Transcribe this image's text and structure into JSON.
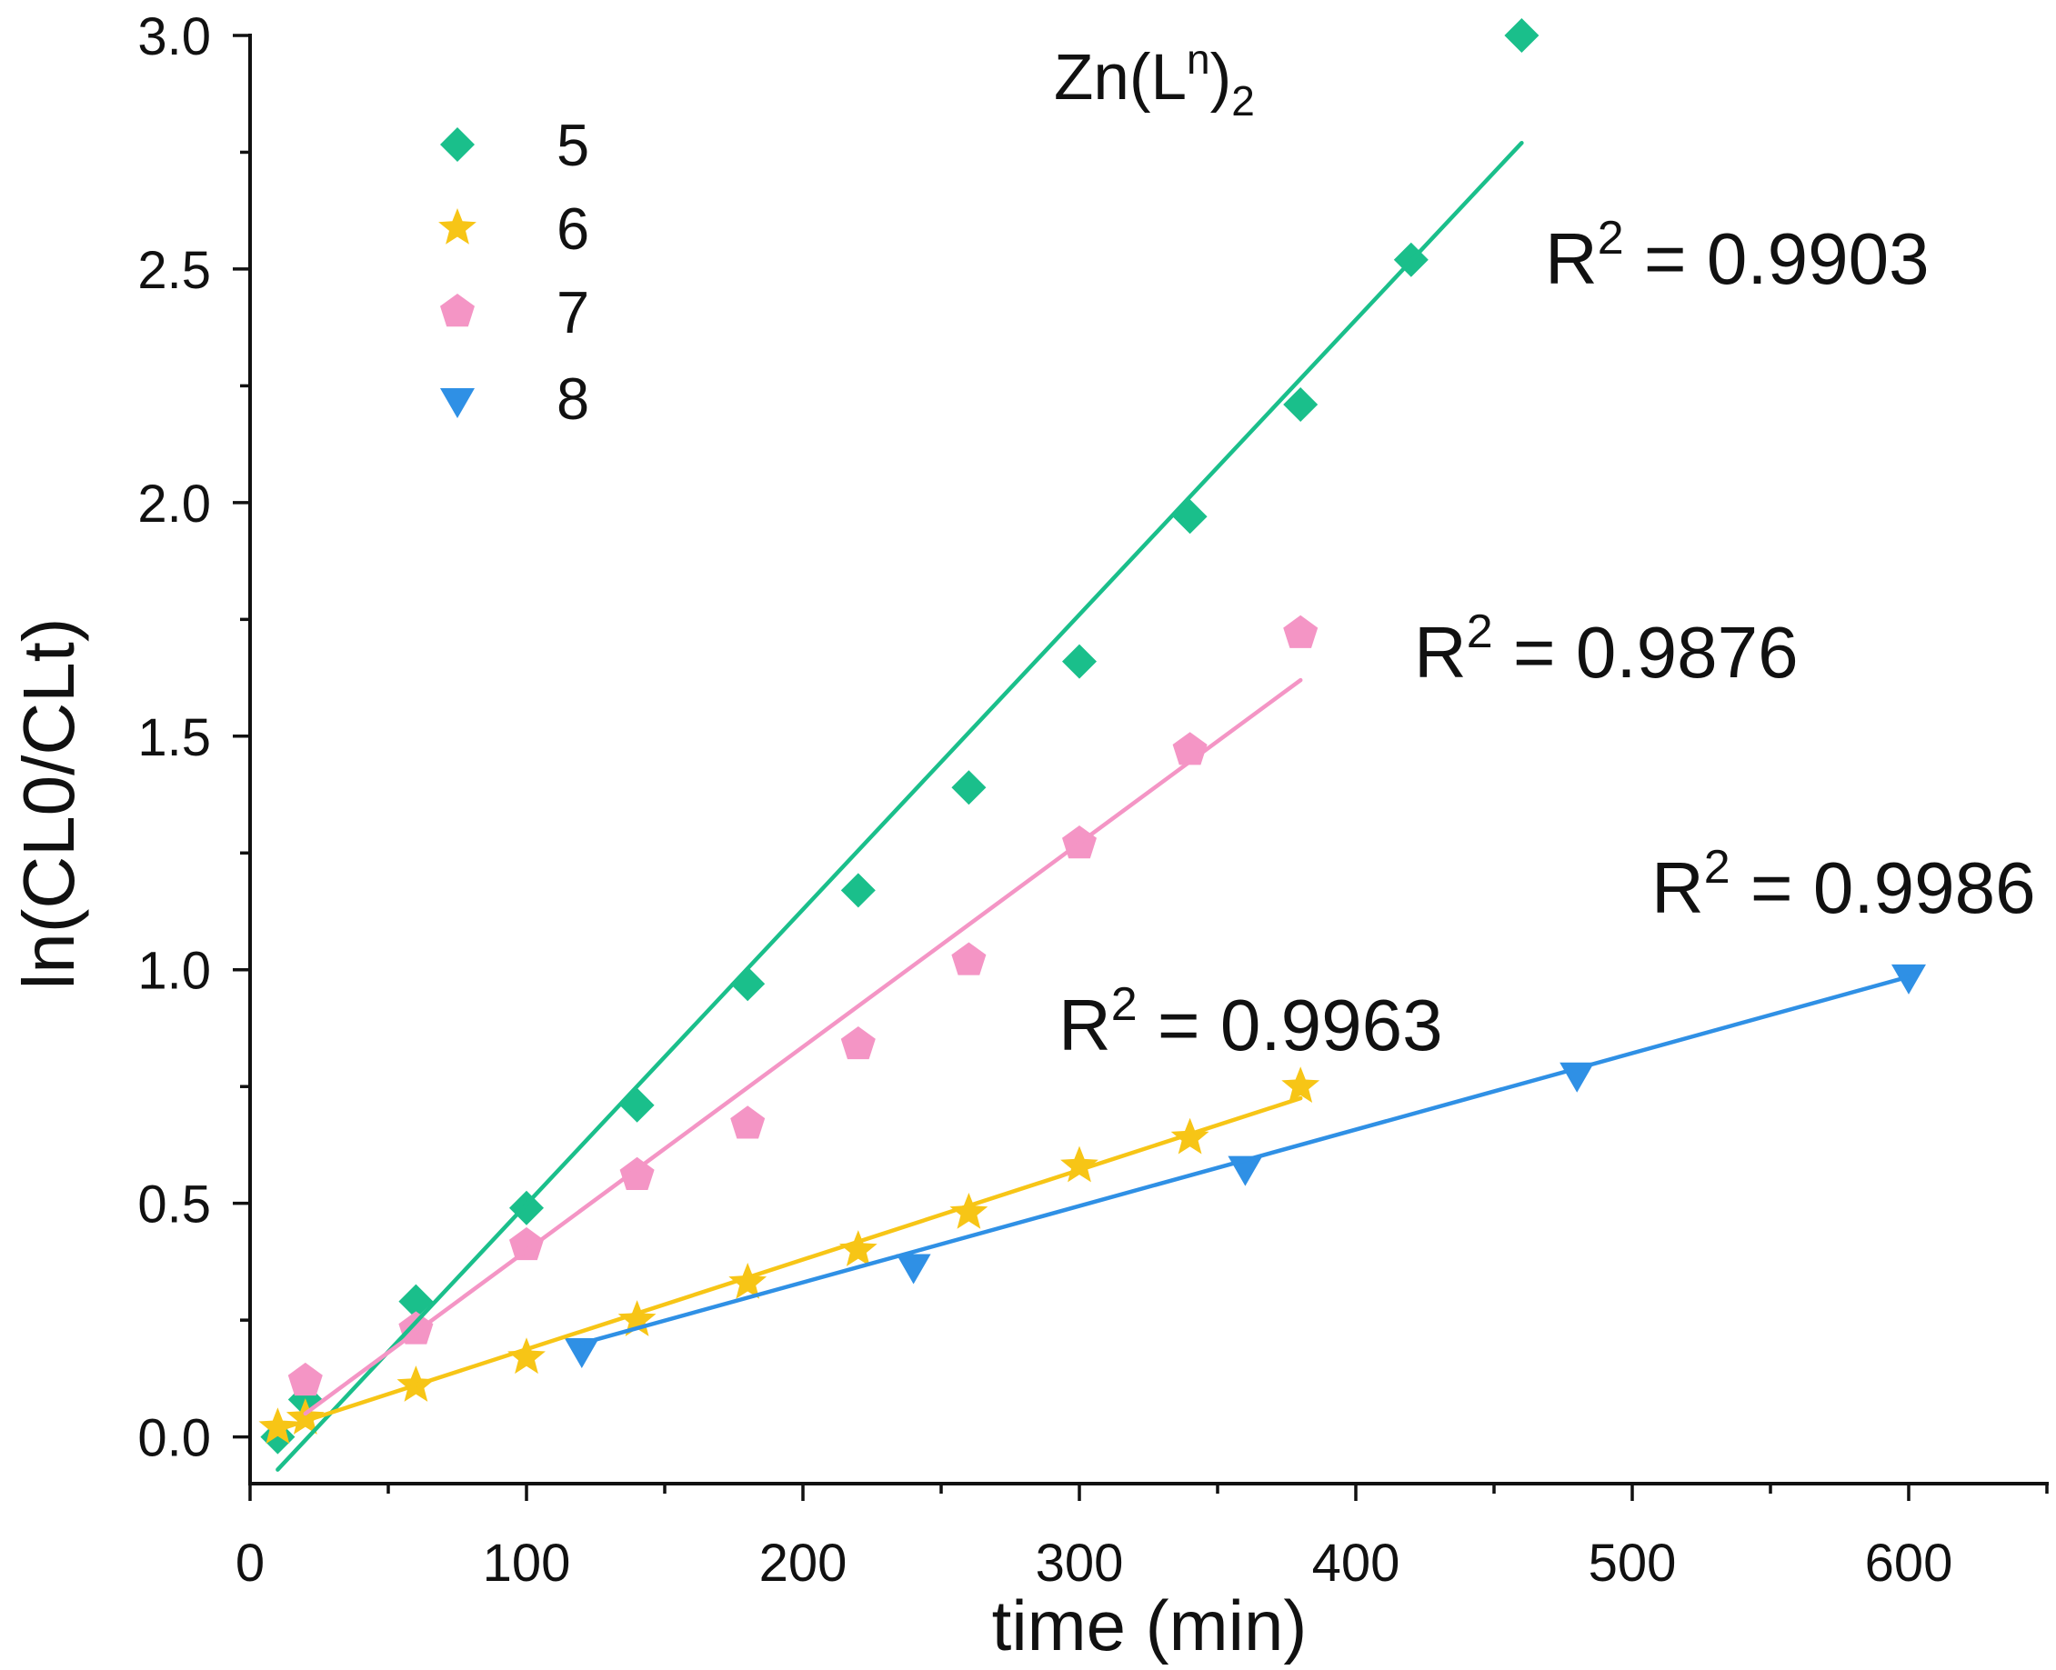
{
  "chart_data": {
    "type": "scatter",
    "title": "",
    "xlabel": "time (min)",
    "ylabel": "ln(CL0/CLt)",
    "xlim": [
      0,
      650
    ],
    "ylim": [
      -0.1,
      3.0
    ],
    "xticks": [
      0,
      100,
      200,
      300,
      400,
      500,
      600
    ],
    "xtick_labels": [
      "0",
      "100",
      "200",
      "300",
      "400",
      "500",
      "600"
    ],
    "yticks": [
      0,
      0.5,
      1.0,
      1.5,
      2.0,
      2.5,
      3.0
    ],
    "ytick_labels": [
      "0.0",
      "0.5",
      "1.0",
      "1.5",
      "2.0",
      "2.5",
      "3.0"
    ],
    "grid": false,
    "legend": {
      "position": "top-left",
      "title": {
        "base": "Zn(L",
        "sup": "n",
        "close": ")",
        "sub": "2"
      }
    },
    "series": [
      {
        "name": "5",
        "color": "#1ABF8B",
        "marker": "diamond",
        "x": [
          10,
          20,
          60,
          100,
          140,
          180,
          220,
          260,
          300,
          340,
          380,
          420,
          460
        ],
        "y": [
          0.0,
          0.08,
          0.29,
          0.49,
          0.71,
          0.97,
          1.17,
          1.39,
          1.66,
          1.97,
          2.21,
          2.52,
          3.0
        ],
        "fit": {
          "x": [
            10,
            460
          ],
          "y": [
            -0.07,
            2.77
          ]
        },
        "r2": {
          "symbol": "R",
          "sup": "2",
          "text": " = 0.9903"
        }
      },
      {
        "name": "6",
        "color": "#F7C516",
        "marker": "star",
        "x": [
          10,
          20,
          60,
          100,
          140,
          180,
          220,
          260,
          300,
          340,
          380
        ],
        "y": [
          0.02,
          0.04,
          0.11,
          0.17,
          0.25,
          0.33,
          0.4,
          0.48,
          0.58,
          0.64,
          0.75
        ],
        "fit": {
          "x": [
            10,
            380
          ],
          "y": [
            0.015,
            0.725
          ]
        },
        "r2": {
          "symbol": "R",
          "sup": "2",
          "text": " = 0.9963"
        }
      },
      {
        "name": "7",
        "color": "#F495C5",
        "marker": "pentagon",
        "x": [
          20,
          60,
          100,
          140,
          180,
          220,
          260,
          300,
          340,
          380
        ],
        "y": [
          0.12,
          0.23,
          0.41,
          0.56,
          0.67,
          0.84,
          1.02,
          1.27,
          1.47,
          1.72
        ],
        "fit": {
          "x": [
            20,
            380
          ],
          "y": [
            0.05,
            1.62
          ]
        },
        "r2": {
          "symbol": "R",
          "sup": "2",
          "text": " = 0.9876"
        }
      },
      {
        "name": "8",
        "color": "#2F90E5",
        "marker": "triangle-down",
        "x": [
          120,
          240,
          360,
          480,
          600
        ],
        "y": [
          0.19,
          0.37,
          0.58,
          0.78,
          0.99
        ],
        "fit": {
          "x": [
            120,
            600
          ],
          "y": [
            0.2,
            0.985
          ]
        },
        "r2": {
          "symbol": "R",
          "sup": "2",
          "text": " = 0.9986"
        }
      }
    ]
  }
}
